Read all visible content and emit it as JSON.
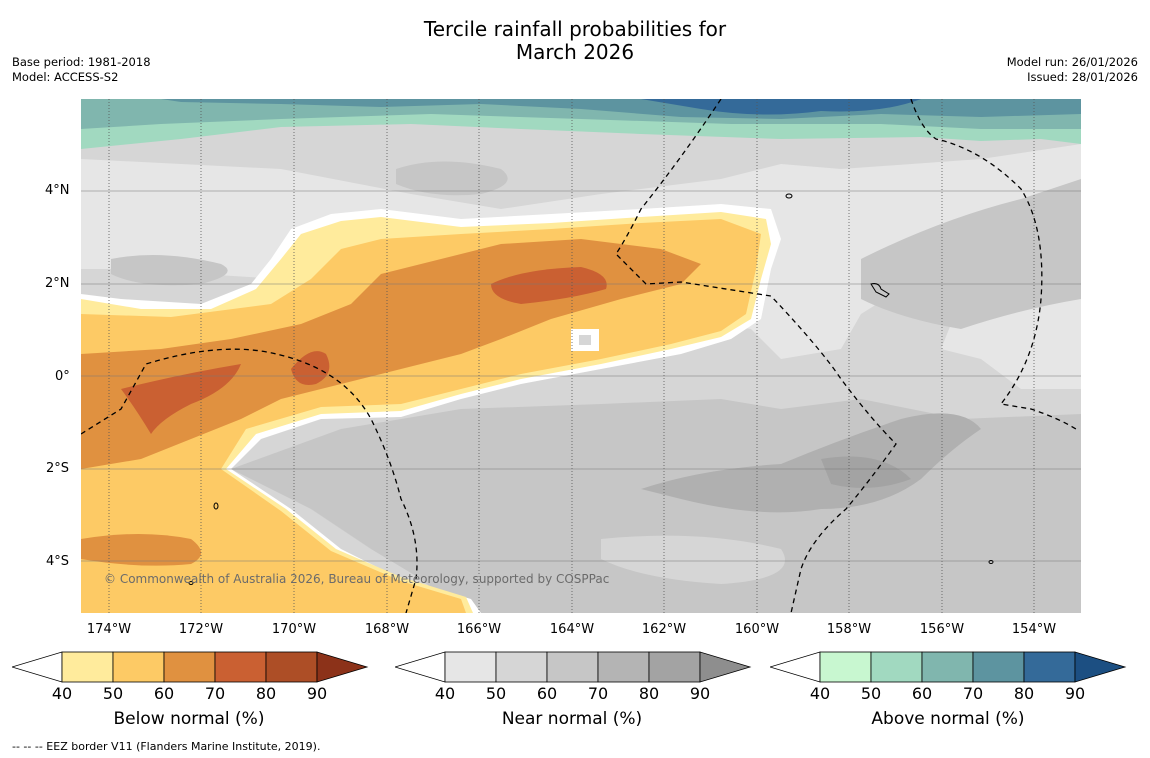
{
  "title": {
    "line1": "Tercile rainfall probabilities for",
    "line2": "March 2026"
  },
  "meta_left": {
    "base_period": "Base period: 1981-2018",
    "model": "Model: ACCESS-S2"
  },
  "meta_right": {
    "model_run": "Model run: 26/01/2026",
    "issued": "Issued: 28/01/2026"
  },
  "map": {
    "lat_labels": [
      "4°N",
      "2°N",
      "0°",
      "2°S",
      "4°S"
    ],
    "lon_labels": [
      "174°W",
      "172°W",
      "170°W",
      "168°W",
      "166°W",
      "164°W",
      "162°W",
      "160°W",
      "158°W",
      "156°W",
      "154°W"
    ],
    "credit": "© Commonwealth of Australia 2026, Bureau of Meteorology, supported by COSPPac"
  },
  "colorbars": {
    "tick_labels": [
      "40",
      "50",
      "60",
      "70",
      "80",
      "90"
    ],
    "below": {
      "title": "Below normal (%)",
      "colors": [
        "#ffffff",
        "#ffeb9c",
        "#fdca65",
        "#e09140",
        "#ca6032",
        "#ad4e26",
        "#8c3219"
      ]
    },
    "near": {
      "title": "Near normal (%)",
      "colors": [
        "#ffffff",
        "#e6e6e6",
        "#d6d6d6",
        "#c6c6c6",
        "#b4b4b4",
        "#a3a3a3",
        "#8e8e8e"
      ]
    },
    "above": {
      "title": "Above normal (%)",
      "colors": [
        "#ffffff",
        "#c8f7d0",
        "#a1d9c0",
        "#80b6ae",
        "#5d94a0",
        "#346a99",
        "#1c4f82"
      ]
    }
  },
  "footnote": "--  --  -- EEZ border V11 (Flanders Marine Institute, 2019)."
}
